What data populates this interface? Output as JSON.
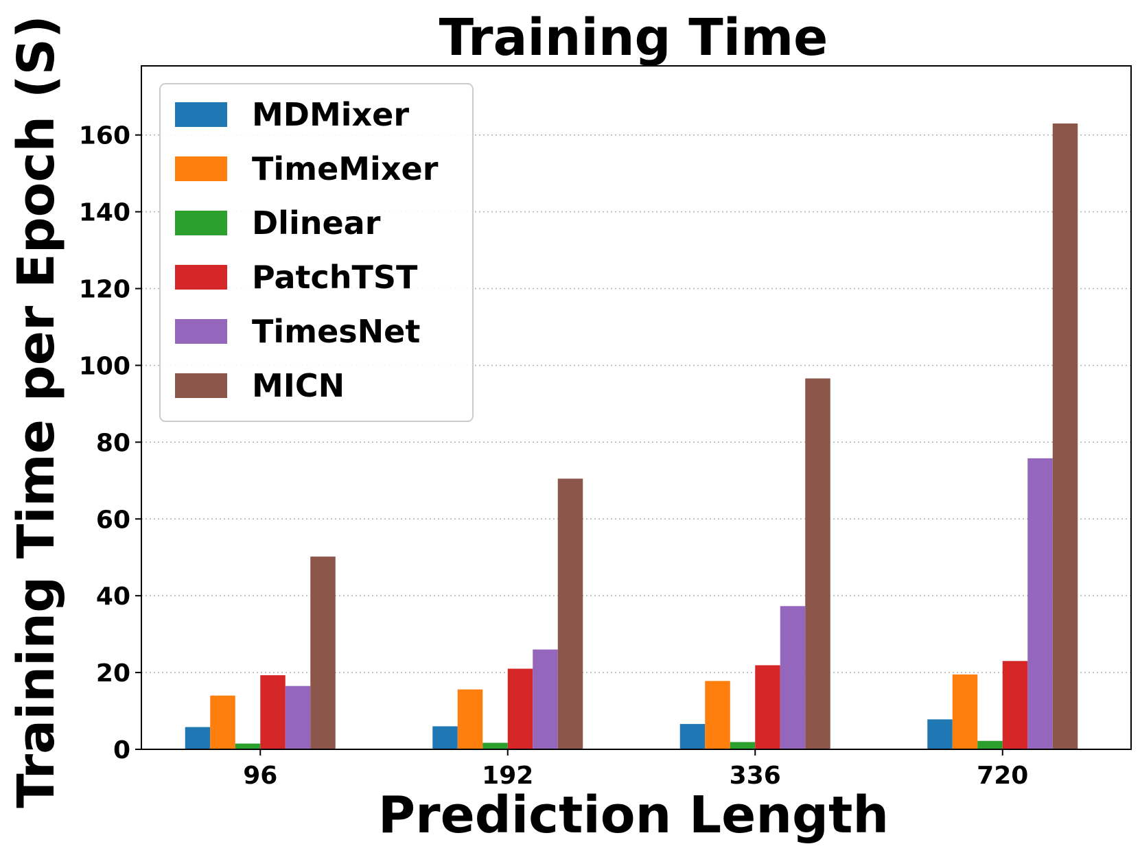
{
  "chart_data": {
    "type": "bar",
    "title": "Training Time",
    "xlabel": "Prediction Length",
    "ylabel": "Training Time per Epoch (S)",
    "categories": [
      "96",
      "192",
      "336",
      "720"
    ],
    "ylim": [
      0,
      178
    ],
    "yticks": [
      0,
      20,
      40,
      60,
      80,
      100,
      120,
      140,
      160
    ],
    "grid": true,
    "legend_position": "top-left",
    "series": [
      {
        "name": "MDMixer",
        "color": "#1f77b4",
        "values": [
          5.8,
          6.0,
          6.6,
          7.8
        ]
      },
      {
        "name": "TimeMixer",
        "color": "#ff7f0e",
        "values": [
          14.0,
          15.6,
          17.8,
          19.5
        ]
      },
      {
        "name": "Dlinear",
        "color": "#2ca02c",
        "values": [
          1.5,
          1.7,
          1.9,
          2.2
        ]
      },
      {
        "name": "PatchTST",
        "color": "#d62728",
        "values": [
          19.3,
          21.0,
          21.9,
          23.0
        ]
      },
      {
        "name": "TimesNet",
        "color": "#9467bd",
        "values": [
          16.5,
          26.0,
          37.3,
          75.8
        ]
      },
      {
        "name": "MICN",
        "color": "#8c564b",
        "values": [
          50.2,
          70.5,
          96.6,
          163.0
        ]
      }
    ]
  }
}
